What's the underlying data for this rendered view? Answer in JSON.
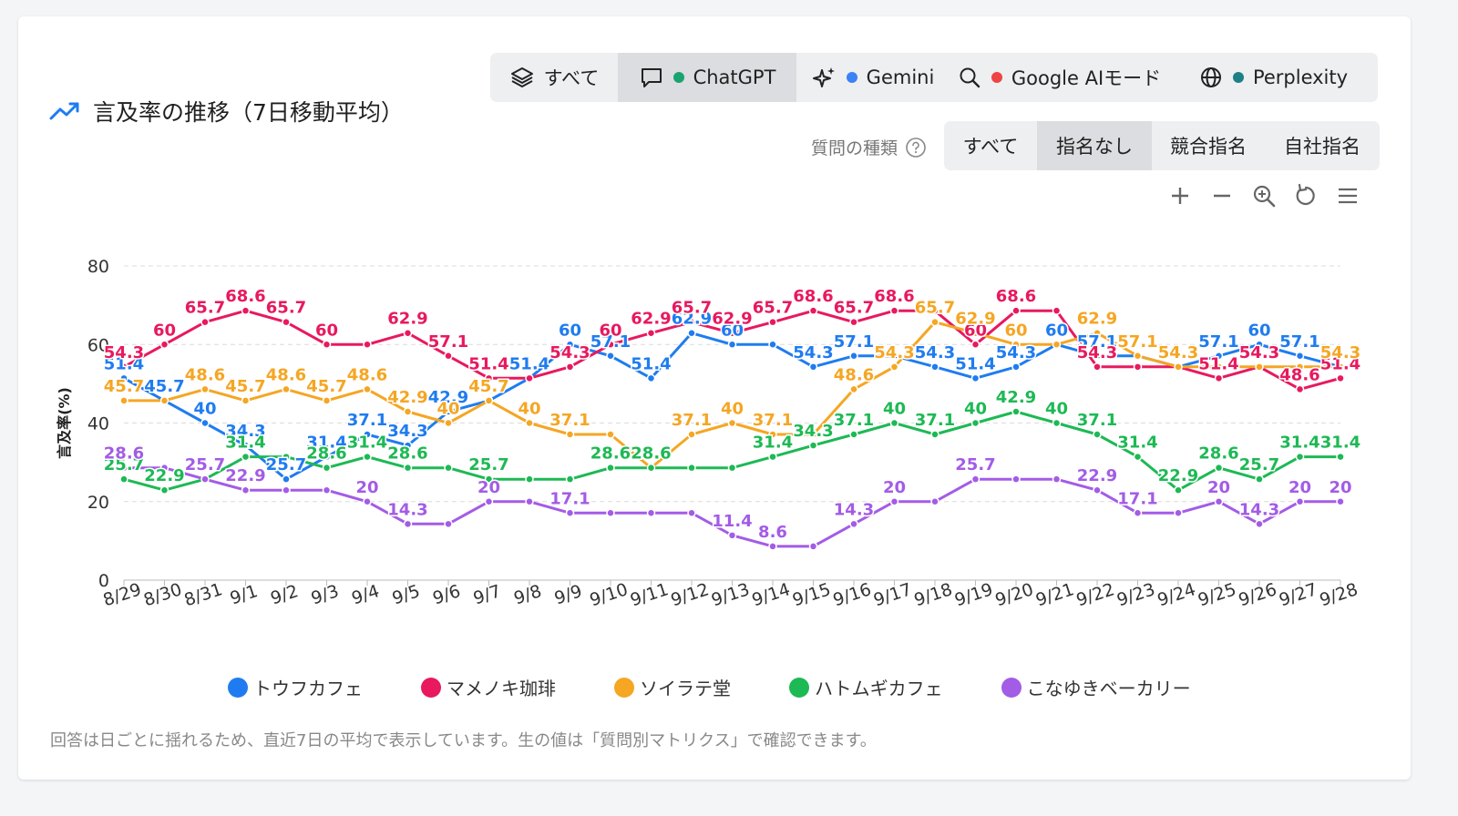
{
  "title": "言及率の推移（7日移動平均）",
  "platform_tabs": [
    {
      "label": "すべて",
      "icon": "layers-icon",
      "dot": ""
    },
    {
      "label": "ChatGPT",
      "icon": "chat-icon",
      "dot": "#1aa36f"
    },
    {
      "label": "Gemini",
      "icon": "sparkle-icon",
      "dot": "#3b82f6"
    },
    {
      "label": "Google AIモード",
      "icon": "search-icon",
      "dot": "#ef4444"
    },
    {
      "label": "Perplexity",
      "icon": "globe-icon",
      "dot": "#1e7f86"
    }
  ],
  "platform_active": 1,
  "question_label": "質問の種類",
  "question_tabs": [
    "すべて",
    "指名なし",
    "競合指名",
    "自社指名"
  ],
  "question_active": 1,
  "footnote": "回答は日ごとに揺れるため、直近7日の平均で表示しています。生の値は「質問別マトリクス」で確認できます。",
  "chart_data": {
    "type": "line",
    "title": "",
    "xlabel": "",
    "ylabel": "言及率(%)",
    "ylim": [
      0,
      80
    ],
    "yticks": [
      0,
      20,
      40,
      60,
      80
    ],
    "grid": true,
    "legend": "bottom",
    "categories": [
      "8/29",
      "8/30",
      "8/31",
      "9/1",
      "9/2",
      "9/3",
      "9/4",
      "9/5",
      "9/6",
      "9/7",
      "9/8",
      "9/9",
      "9/10",
      "9/11",
      "9/12",
      "9/13",
      "9/14",
      "9/15",
      "9/16",
      "9/17",
      "9/18",
      "9/19",
      "9/20",
      "9/21",
      "9/22",
      "9/23",
      "9/24",
      "9/25",
      "9/26",
      "9/27",
      "9/28"
    ],
    "series": [
      {
        "name": "トウフカフェ",
        "color": "#1f7cf0",
        "values": [
          51.4,
          45.7,
          40,
          34.3,
          25.7,
          31.4,
          37.1,
          34.3,
          42.9,
          45.7,
          51.4,
          60,
          57.1,
          51.4,
          62.9,
          60,
          60,
          54.3,
          57.1,
          57.1,
          54.3,
          51.4,
          54.3,
          60,
          57.1,
          57.1,
          54.3,
          57.1,
          60,
          57.1,
          54.3
        ]
      },
      {
        "name": "マメノキ珈琲",
        "color": "#e8195e",
        "values": [
          54.3,
          60,
          65.7,
          68.6,
          65.7,
          60,
          60,
          62.9,
          57.1,
          51.4,
          51.4,
          54.3,
          60,
          62.9,
          65.7,
          62.9,
          65.7,
          68.6,
          65.7,
          68.6,
          68.6,
          60,
          68.6,
          68.6,
          54.3,
          54.3,
          54.3,
          51.4,
          54.3,
          48.6,
          51.4
        ]
      },
      {
        "name": "ソイラテ堂",
        "color": "#f5a623",
        "values": [
          45.7,
          45.7,
          48.6,
          45.7,
          48.6,
          45.7,
          48.6,
          42.9,
          40,
          45.7,
          40,
          37.1,
          37.1,
          28.6,
          37.1,
          40,
          37.1,
          37.1,
          48.6,
          54.3,
          65.7,
          62.9,
          60,
          60,
          62.9,
          57.1,
          54.3,
          54.3,
          54.3,
          54.3,
          54.3
        ]
      },
      {
        "name": "ハトムギカフェ",
        "color": "#1db954",
        "values": [
          25.7,
          22.9,
          25.7,
          31.4,
          31.4,
          28.6,
          31.4,
          28.6,
          28.6,
          25.7,
          25.7,
          25.7,
          28.6,
          28.6,
          28.6,
          28.6,
          31.4,
          34.3,
          37.1,
          40,
          37.1,
          40,
          42.9,
          40,
          37.1,
          31.4,
          22.9,
          28.6,
          25.7,
          31.4,
          31.4
        ]
      },
      {
        "name": "こなゆきベーカリー",
        "color": "#a35ce6",
        "values": [
          28.6,
          28.6,
          25.7,
          22.9,
          22.9,
          22.9,
          20,
          14.3,
          14.3,
          20,
          20,
          17.1,
          17.1,
          17.1,
          17.1,
          11.4,
          8.6,
          8.6,
          14.3,
          20,
          20,
          25.7,
          25.7,
          25.7,
          22.9,
          17.1,
          17.1,
          20,
          14.3,
          20,
          20
        ]
      }
    ],
    "data_labels": [
      {
        "series": 0,
        "idx": [
          0,
          1,
          2,
          3,
          4,
          5,
          6,
          7,
          8,
          10,
          11,
          12,
          13,
          14,
          15,
          17,
          18,
          20,
          21,
          22,
          23,
          24,
          27,
          28,
          29
        ]
      },
      {
        "series": 1,
        "idx": [
          0,
          1,
          2,
          3,
          4,
          5,
          7,
          8,
          9,
          11,
          12,
          13,
          14,
          15,
          16,
          17,
          18,
          19,
          21,
          22,
          24,
          27,
          28,
          29,
          30
        ]
      },
      {
        "series": 2,
        "idx": [
          0,
          2,
          3,
          4,
          5,
          6,
          7,
          8,
          9,
          10,
          11,
          13,
          14,
          15,
          16,
          18,
          19,
          20,
          21,
          22,
          24,
          25,
          26,
          30
        ]
      },
      {
        "series": 3,
        "idx": [
          0,
          1,
          3,
          5,
          6,
          7,
          9,
          12,
          13,
          16,
          17,
          18,
          19,
          20,
          21,
          22,
          23,
          24,
          25,
          26,
          27,
          28,
          29,
          30
        ]
      },
      {
        "series": 4,
        "idx": [
          0,
          2,
          3,
          6,
          7,
          9,
          11,
          15,
          16,
          18,
          19,
          21,
          24,
          25,
          27,
          28,
          29,
          30
        ]
      }
    ]
  }
}
